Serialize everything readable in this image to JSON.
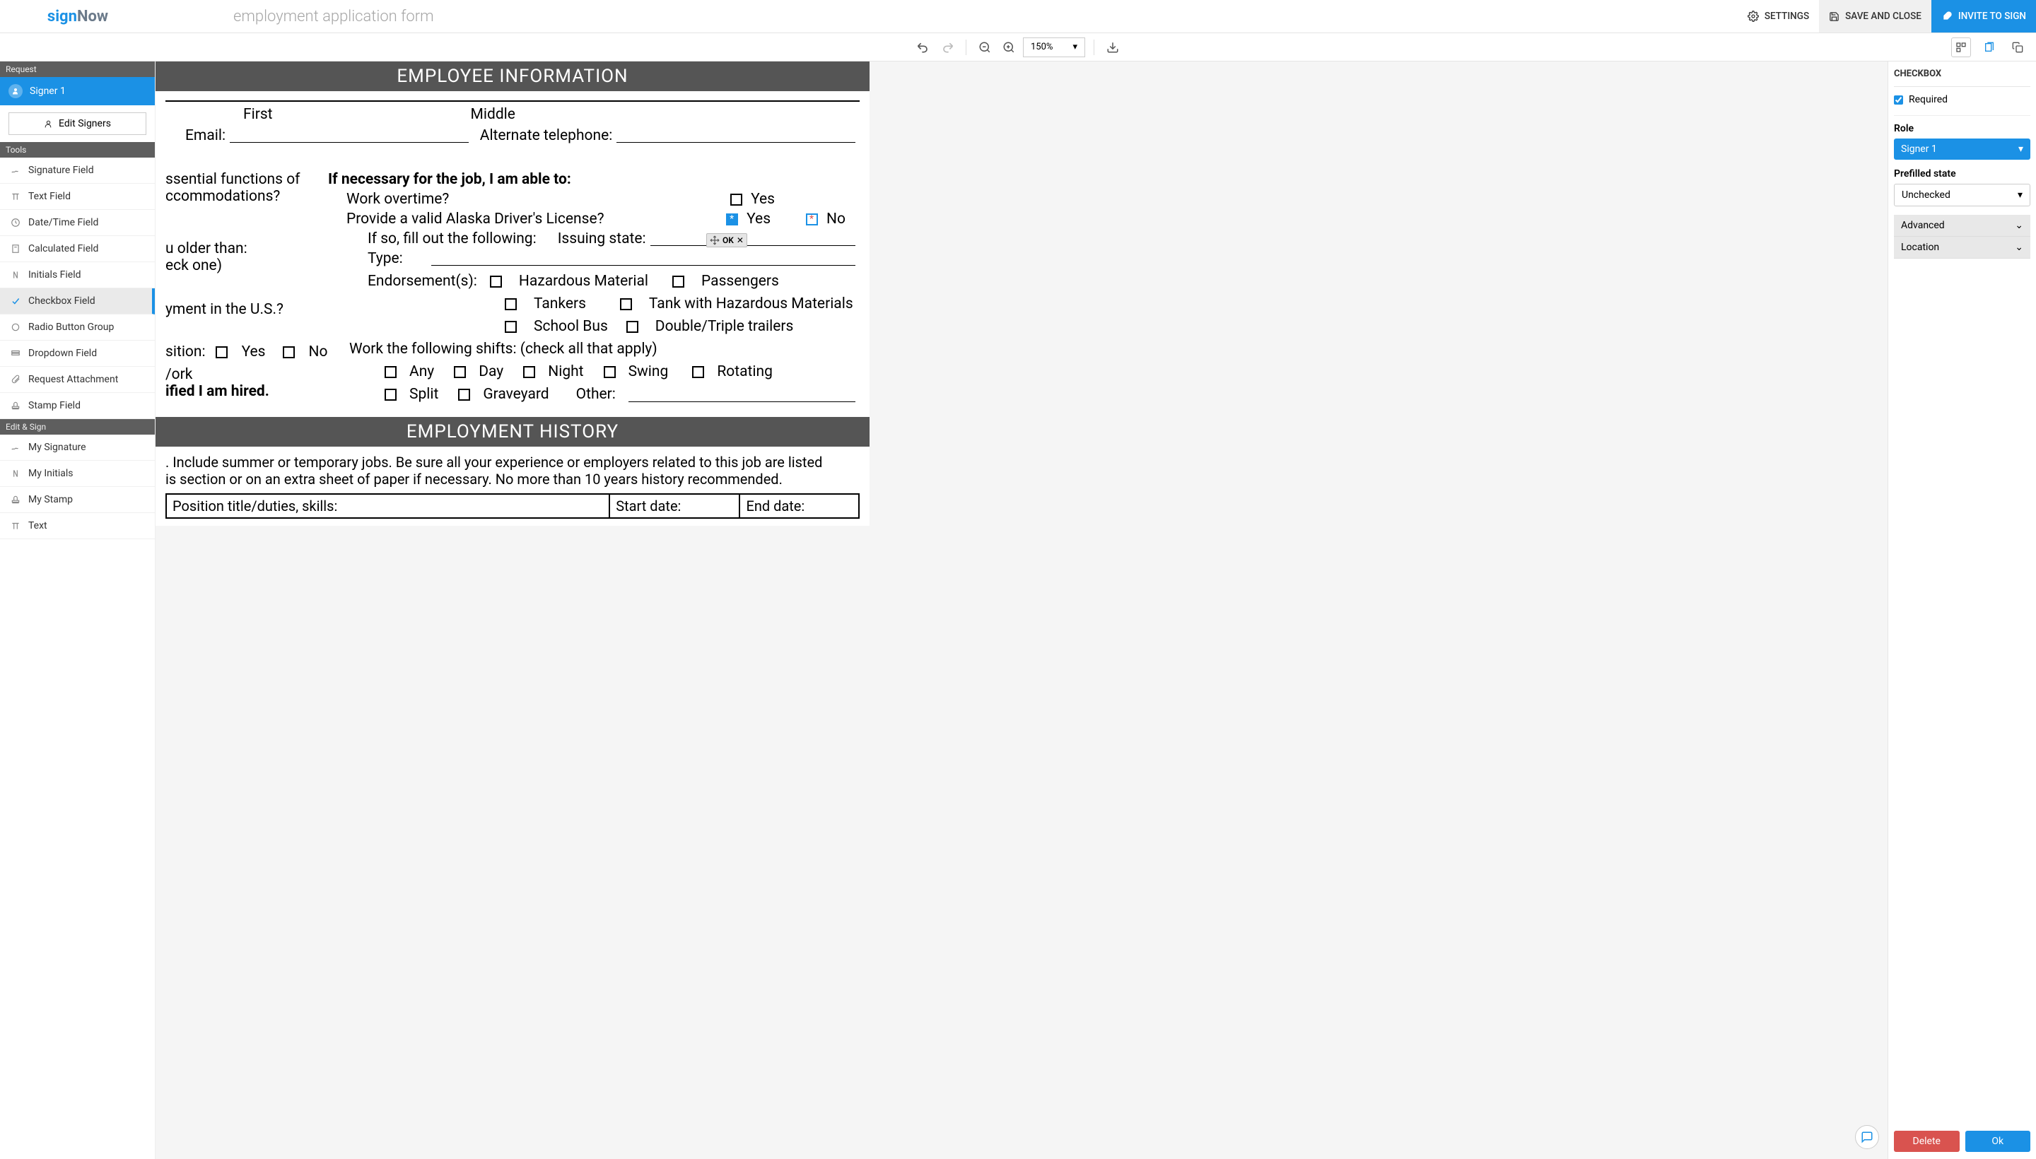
{
  "colors": {
    "primary": "#1b91e5",
    "danger": "#d9534f",
    "toolbar_bg": "#f0f0f0",
    "banner_bg": "#555555"
  },
  "header": {
    "logo_sign": "sign",
    "logo_now": "Now",
    "doc_title": "employment application form",
    "settings": "SETTINGS",
    "save": "SAVE AND CLOSE",
    "invite": "INVITE TO SIGN"
  },
  "toolbar": {
    "zoom": "150%"
  },
  "sidebar": {
    "request_header": "Request",
    "signer": "Signer 1",
    "edit_signers": "Edit Signers",
    "tools_header": "Tools",
    "tools": [
      {
        "label": "Signature Field",
        "icon": "sig"
      },
      {
        "label": "Text Field",
        "icon": "text"
      },
      {
        "label": "Date/Time Field",
        "icon": "clock"
      },
      {
        "label": "Calculated Field",
        "icon": "calc"
      },
      {
        "label": "Initials Field",
        "icon": "initials"
      },
      {
        "label": "Checkbox Field",
        "icon": "check",
        "active": true
      },
      {
        "label": "Radio Button Group",
        "icon": "radio"
      },
      {
        "label": "Dropdown Field",
        "icon": "dropdown"
      },
      {
        "label": "Request Attachment",
        "icon": "attach"
      },
      {
        "label": "Stamp Field",
        "icon": "stamp"
      }
    ],
    "edit_sign_header": "Edit & Sign",
    "edit_sign": [
      {
        "label": "My Signature",
        "icon": "sig"
      },
      {
        "label": "My Initials",
        "icon": "initials"
      },
      {
        "label": "My Stamp",
        "icon": "stamp"
      },
      {
        "label": "Text",
        "icon": "text"
      }
    ]
  },
  "document": {
    "banner1": "EMPLOYEE INFORMATION",
    "first": "First",
    "middle": "Middle",
    "email": "Email:",
    "alt_phone": "Alternate telephone:",
    "essential1": "ssential functions of",
    "essential2": "ccommodations?",
    "if_necessary": "If necessary for the job, I am able to:",
    "overtime": "Work overtime?",
    "license": "Provide a valid Alaska Driver's License?",
    "yes": "Yes",
    "no": "No",
    "older": "u older than:",
    "check_one": "eck one)",
    "if_so": "If so, fill out the following:",
    "issuing": "Issuing state:",
    "type": "Type:",
    "endorsements": "Endorsement(s):",
    "hazmat": "Hazardous Material",
    "passengers": "Passengers",
    "tankers": "Tankers",
    "tank_hazmat": "Tank with Hazardous Materials",
    "school_bus": "School Bus",
    "double_triple": "Double/Triple trailers",
    "employment_us": "yment in the U.S.?",
    "position": "sition:",
    "work": "/ork",
    "hired": "ified I am hired.",
    "shifts": "Work the following shifts: (check all that apply)",
    "any": "Any",
    "day": "Day",
    "night": "Night",
    "swing": "Swing",
    "rotating": "Rotating",
    "split": "Split",
    "graveyard": "Graveyard",
    "other": "Other:",
    "banner2": "EMPLOYMENT HISTORY",
    "hist1": ". Include summer or temporary jobs. Be sure all your experience or employers related to this job are listed",
    "hist2": "is section or on an extra sheet of paper if necessary. No more than 10 years history recommended.",
    "pos_title": "Position title/duties, skills:",
    "start_date": "Start date:",
    "end_date": "End date:",
    "widget_ok": "OK"
  },
  "rightpanel": {
    "title": "CHECKBOX",
    "required": "Required",
    "role_label": "Role",
    "role_value": "Signer 1",
    "prefilled_label": "Prefilled state",
    "prefilled_value": "Unchecked",
    "advanced": "Advanced",
    "location": "Location",
    "delete": "Delete",
    "ok": "Ok"
  }
}
